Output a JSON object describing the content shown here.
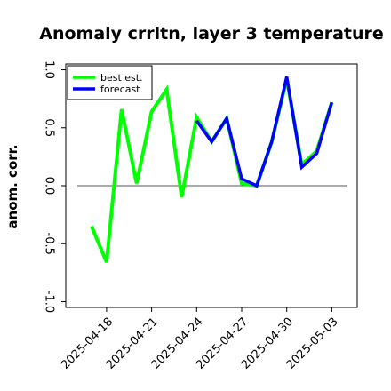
{
  "chart_data": {
    "type": "line",
    "title": "Anomaly crrltn, layer 3 temperature",
    "xlabel": "",
    "ylabel": "anom. corr.",
    "ylim": [
      -1.05,
      1.05
    ],
    "yticks": [
      -1.0,
      -0.5,
      0.0,
      0.5,
      1.0
    ],
    "ytick_labels": [
      "-1.0",
      "-0.5",
      "0.0",
      "0.5",
      "1.0"
    ],
    "x": [
      "2025-04-17",
      "2025-04-18",
      "2025-04-19",
      "2025-04-20",
      "2025-04-21",
      "2025-04-22",
      "2025-04-23",
      "2025-04-24",
      "2025-04-25",
      "2025-04-26",
      "2025-04-27",
      "2025-04-28",
      "2025-04-29",
      "2025-04-30",
      "2025-05-01",
      "2025-05-02",
      "2025-05-03"
    ],
    "xticks": [
      "2025-04-18",
      "2025-04-21",
      "2025-04-24",
      "2025-04-27",
      "2025-04-30",
      "2025-05-03"
    ],
    "highlighted_xtick": "2025-04-24",
    "highlight_color": "#228B22",
    "zero_line": true,
    "grid": false,
    "legend_position": "top-left",
    "series": [
      {
        "name": "best est.",
        "color": "#00ff00",
        "values": [
          -0.35,
          -0.66,
          0.66,
          0.02,
          0.64,
          0.83,
          -0.1,
          0.59,
          0.38,
          0.58,
          0.02,
          0.0,
          0.38,
          0.92,
          0.18,
          0.3,
          0.72
        ]
      },
      {
        "name": "forecast",
        "color": "#0000ff",
        "values": [
          null,
          null,
          null,
          null,
          null,
          null,
          null,
          0.56,
          0.38,
          0.58,
          0.06,
          0.0,
          0.38,
          0.94,
          0.16,
          0.28,
          0.72
        ]
      }
    ]
  }
}
